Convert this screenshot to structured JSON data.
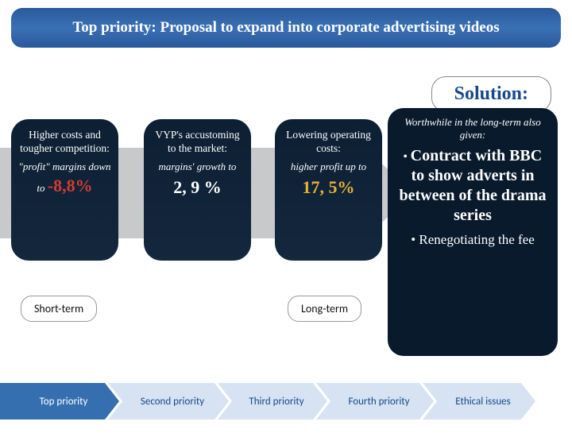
{
  "title": "Top priority: Proposal to expand into corporate advertising videos",
  "solution_label": "Solution:",
  "arrow_fill": "#c7c9cb",
  "pills": {
    "p1": {
      "heading": "Higher costs and tougher competition:",
      "sub": "\"profit\" margins down",
      "to": "to ",
      "value": "-8,8%",
      "value_color": "#d43c2e"
    },
    "p2": {
      "heading": "VYP's accustoming to the market:",
      "sub": "margins' growth  to",
      "value": "2, 9 %",
      "value_color": "#ffffff"
    },
    "p3": {
      "heading": "Lowering operating costs:",
      "sub": "higher profit up to",
      "value": "17, 5%",
      "value_color": "#e8b23a"
    }
  },
  "right": {
    "worth": "Worthwhile in the long-term also given:",
    "bullet": "•",
    "main": "Contract with BBC to show adverts in between of the drama series",
    "reneg": "• Renegotiating the fee"
  },
  "terms": {
    "short": "Short-term",
    "long": "Long-term"
  },
  "nav": {
    "items": [
      {
        "label": "Top priority",
        "fill": "#356fb0",
        "text": "light"
      },
      {
        "label": "Second priority",
        "fill": "#d7e3f3",
        "text": "dark"
      },
      {
        "label": "Third priority",
        "fill": "#d7e3f3",
        "text": "dark"
      },
      {
        "label": "Fourth priority",
        "fill": "#d7e3f3",
        "text": "dark"
      },
      {
        "label": "Ethical issues",
        "fill": "#d7e3f3",
        "text": "dark"
      }
    ]
  },
  "colors": {
    "title_bg_top": "#2a5a9a",
    "title_bg_mid": "#3970b5",
    "pill_bg": "#0d1f33",
    "right_bg": "#091a2c",
    "solution_text": "#154a8a"
  }
}
